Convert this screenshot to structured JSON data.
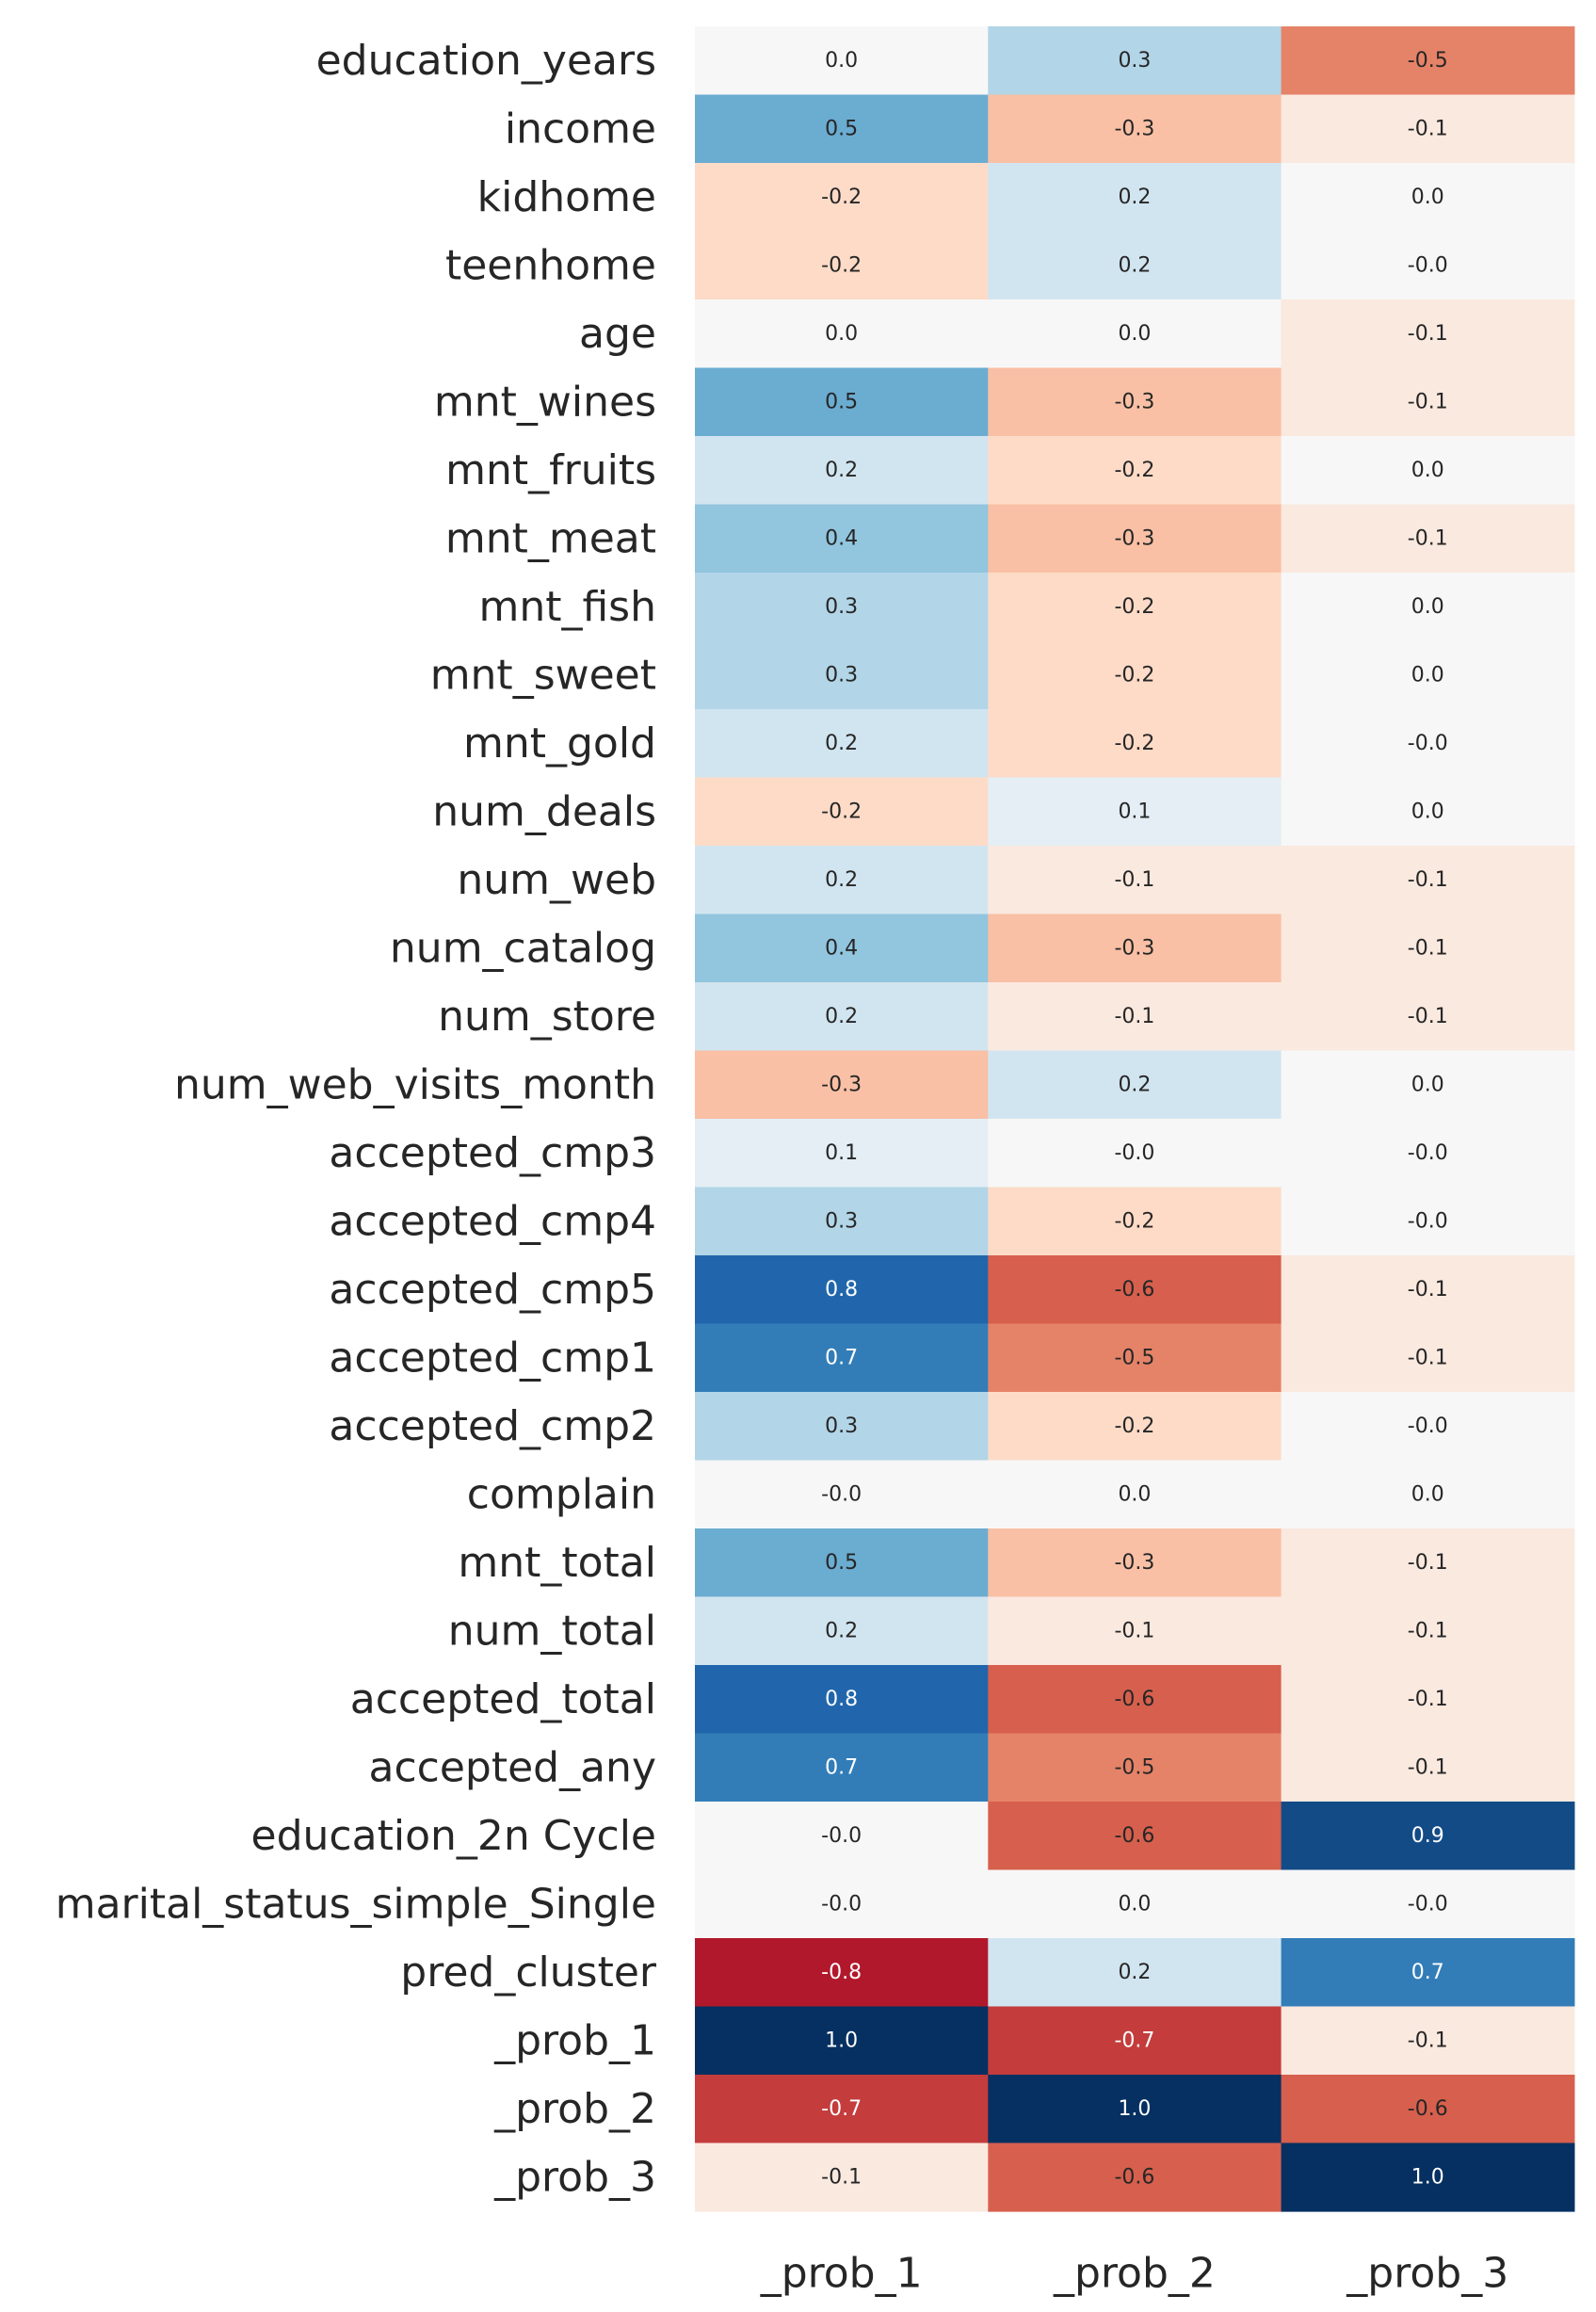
{
  "chart_data": {
    "type": "heatmap",
    "title": "",
    "xlabel": "",
    "ylabel": "",
    "columns": [
      "_prob_1",
      "_prob_2",
      "_prob_3"
    ],
    "rows": [
      "education_years",
      "income",
      "kidhome",
      "teenhome",
      "age",
      "mnt_wines",
      "mnt_fruits",
      "mnt_meat",
      "mnt_fish",
      "mnt_sweet",
      "mnt_gold",
      "num_deals",
      "num_web",
      "num_catalog",
      "num_store",
      "num_web_visits_month",
      "accepted_cmp3",
      "accepted_cmp4",
      "accepted_cmp5",
      "accepted_cmp1",
      "accepted_cmp2",
      "complain",
      "mnt_total",
      "num_total",
      "accepted_total",
      "accepted_any",
      "education_2n Cycle",
      "marital_status_simple_Single",
      "pred_cluster",
      "_prob_1",
      "_prob_2",
      "_prob_3"
    ],
    "values": [
      [
        0.0,
        0.3,
        -0.5
      ],
      [
        0.5,
        -0.3,
        -0.1
      ],
      [
        -0.2,
        0.2,
        0.0
      ],
      [
        -0.2,
        0.2,
        -0.0
      ],
      [
        0.0,
        0.0,
        -0.1
      ],
      [
        0.5,
        -0.3,
        -0.1
      ],
      [
        0.2,
        -0.2,
        0.0
      ],
      [
        0.4,
        -0.3,
        -0.1
      ],
      [
        0.3,
        -0.2,
        0.0
      ],
      [
        0.3,
        -0.2,
        0.0
      ],
      [
        0.2,
        -0.2,
        -0.0
      ],
      [
        -0.2,
        0.1,
        0.0
      ],
      [
        0.2,
        -0.1,
        -0.1
      ],
      [
        0.4,
        -0.3,
        -0.1
      ],
      [
        0.2,
        -0.1,
        -0.1
      ],
      [
        -0.3,
        0.2,
        0.0
      ],
      [
        0.1,
        -0.0,
        -0.0
      ],
      [
        0.3,
        -0.2,
        -0.0
      ],
      [
        0.8,
        -0.6,
        -0.1
      ],
      [
        0.7,
        -0.5,
        -0.1
      ],
      [
        0.3,
        -0.2,
        -0.0
      ],
      [
        -0.0,
        0.0,
        0.0
      ],
      [
        0.5,
        -0.3,
        -0.1
      ],
      [
        0.2,
        -0.1,
        -0.1
      ],
      [
        0.8,
        -0.6,
        -0.1
      ],
      [
        0.7,
        -0.5,
        -0.1
      ],
      [
        -0.0,
        -0.6,
        0.9
      ],
      [
        -0.0,
        0.0,
        -0.0
      ],
      [
        -0.8,
        0.2,
        0.7
      ],
      [
        1.0,
        -0.7,
        -0.1
      ],
      [
        -0.7,
        1.0,
        -0.6
      ],
      [
        -0.1,
        -0.6,
        1.0
      ]
    ],
    "labels": [
      [
        "0.0",
        "0.3",
        "-0.5"
      ],
      [
        "0.5",
        "-0.3",
        "-0.1"
      ],
      [
        "-0.2",
        "0.2",
        "0.0"
      ],
      [
        "-0.2",
        "0.2",
        "-0.0"
      ],
      [
        "0.0",
        "0.0",
        "-0.1"
      ],
      [
        "0.5",
        "-0.3",
        "-0.1"
      ],
      [
        "0.2",
        "-0.2",
        "0.0"
      ],
      [
        "0.4",
        "-0.3",
        "-0.1"
      ],
      [
        "0.3",
        "-0.2",
        "0.0"
      ],
      [
        "0.3",
        "-0.2",
        "0.0"
      ],
      [
        "0.2",
        "-0.2",
        "-0.0"
      ],
      [
        "-0.2",
        "0.1",
        "0.0"
      ],
      [
        "0.2",
        "-0.1",
        "-0.1"
      ],
      [
        "0.4",
        "-0.3",
        "-0.1"
      ],
      [
        "0.2",
        "-0.1",
        "-0.1"
      ],
      [
        "-0.3",
        "0.2",
        "0.0"
      ],
      [
        "0.1",
        "-0.0",
        "-0.0"
      ],
      [
        "0.3",
        "-0.2",
        "-0.0"
      ],
      [
        "0.8",
        "-0.6",
        "-0.1"
      ],
      [
        "0.7",
        "-0.5",
        "-0.1"
      ],
      [
        "0.3",
        "-0.2",
        "-0.0"
      ],
      [
        "-0.0",
        "0.0",
        "0.0"
      ],
      [
        "0.5",
        "-0.3",
        "-0.1"
      ],
      [
        "0.2",
        "-0.1",
        "-0.1"
      ],
      [
        "0.8",
        "-0.6",
        "-0.1"
      ],
      [
        "0.7",
        "-0.5",
        "-0.1"
      ],
      [
        "-0.0",
        "-0.6",
        "0.9"
      ],
      [
        "-0.0",
        "0.0",
        "-0.0"
      ],
      [
        "-0.8",
        "0.2",
        "0.7"
      ],
      [
        "1.0",
        "-0.7",
        "-0.1"
      ],
      [
        "-0.7",
        "1.0",
        "-0.6"
      ],
      [
        "-0.1",
        "-0.6",
        "1.0"
      ]
    ],
    "colormap": {
      "name": "RdBu",
      "vmin": -1,
      "vmax": 1,
      "stops": [
        "#67001f",
        "#b2182b",
        "#d6604d",
        "#f4a582",
        "#fddbc7",
        "#f7f7f7",
        "#d1e5f0",
        "#92c5de",
        "#4393c3",
        "#2166ac",
        "#053061"
      ]
    },
    "colorbar": false,
    "grid": false
  }
}
